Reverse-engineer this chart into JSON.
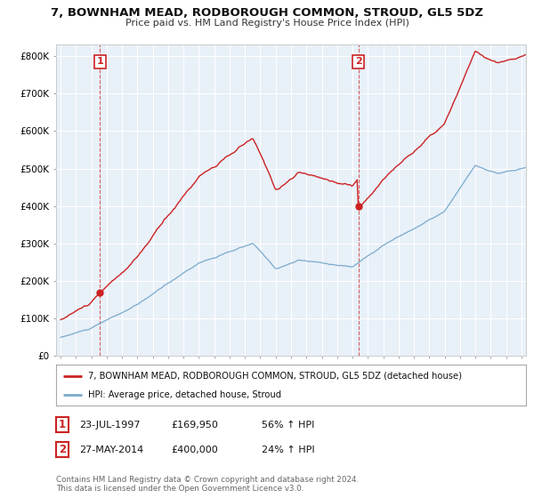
{
  "title": "7, BOWNHAM MEAD, RODBOROUGH COMMON, STROUD, GL5 5DZ",
  "subtitle": "Price paid vs. HM Land Registry's House Price Index (HPI)",
  "legend_line1": "7, BOWNHAM MEAD, RODBOROUGH COMMON, STROUD, GL5 5DZ (detached house)",
  "legend_line2": "HPI: Average price, detached house, Stroud",
  "annotation1_label": "1",
  "annotation1_date": "23-JUL-1997",
  "annotation1_price": "£169,950",
  "annotation1_hpi": "56% ↑ HPI",
  "annotation2_label": "2",
  "annotation2_date": "27-MAY-2014",
  "annotation2_price": "£400,000",
  "annotation2_hpi": "24% ↑ HPI",
  "footer": "Contains HM Land Registry data © Crown copyright and database right 2024.\nThis data is licensed under the Open Government Licence v3.0.",
  "sale1_year": 1997.55,
  "sale1_price": 169950,
  "sale2_year": 2014.38,
  "sale2_price": 400000,
  "line_color_red": "#cc2222",
  "line_color_blue": "#7aaacc",
  "plot_bg_color": "#e8f0f8",
  "background_color": "#ffffff",
  "grid_color": "#ffffff",
  "ylim": [
    0,
    830000
  ],
  "xlim_start": 1994.7,
  "xlim_end": 2025.3
}
